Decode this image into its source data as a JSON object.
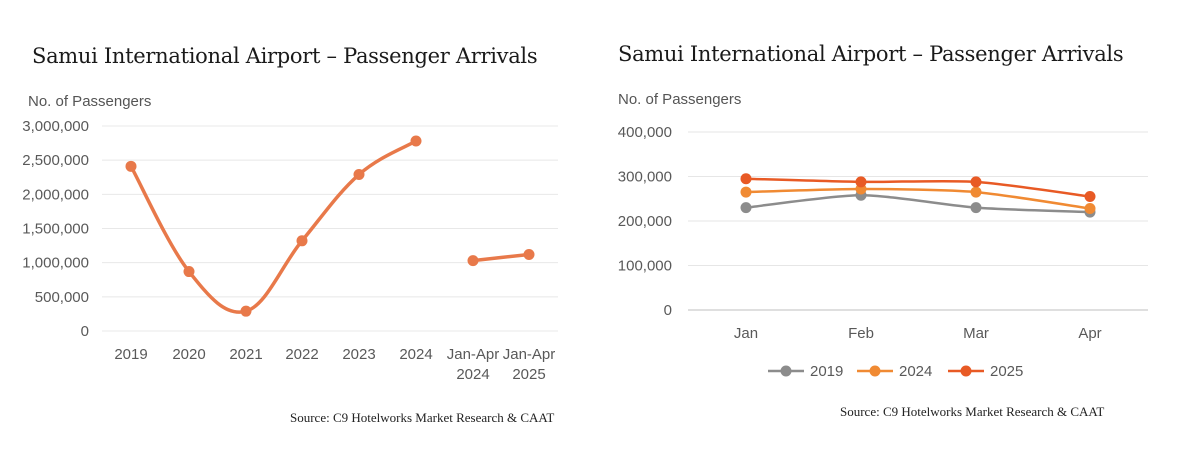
{
  "chart_data": [
    {
      "type": "line",
      "title": "Samui International Airport – Passenger Arrivals",
      "ylabel": "No. of Passengers",
      "xlabel": "",
      "source": "Source: C9 Hotelworks Market Research & CAAT",
      "ylim": [
        0,
        3000000
      ],
      "yticks": [
        "3,000,000",
        "2,500,000",
        "2,000,000",
        "1,500,000",
        "1,000,000",
        "500,000",
        "0"
      ],
      "categories": [
        "2019",
        "2020",
        "2021",
        "2022",
        "2023",
        "2024",
        "Jan-Apr 2024",
        "Jan-Apr 2025"
      ],
      "series": [
        {
          "color": "#E8794A",
          "segments": [
            {
              "x": [
                "2019",
                "2020",
                "2021",
                "2022",
                "2023",
                "2024"
              ],
              "values": [
                2410000,
                870000,
                290000,
                1320000,
                2290000,
                2780000
              ]
            },
            {
              "x": [
                "Jan-Apr 2024",
                "Jan-Apr 2025"
              ],
              "values": [
                1030000,
                1120000
              ]
            }
          ]
        }
      ],
      "grid": true,
      "legend": "none"
    },
    {
      "type": "line",
      "title": "Samui International Airport – Passenger Arrivals",
      "ylabel": "No. of Passengers",
      "xlabel": "",
      "source": "Source: C9 Hotelworks Market Research & CAAT",
      "ylim": [
        0,
        400000
      ],
      "yticks": [
        "400,000",
        "300,000",
        "200,000",
        "100,000",
        "0"
      ],
      "categories": [
        "Jan",
        "Feb",
        "Mar",
        "Apr"
      ],
      "series": [
        {
          "name": "2019",
          "color": "#8C8C8C",
          "values": [
            230000,
            258000,
            230000,
            220000
          ]
        },
        {
          "name": "2024",
          "color": "#F08A33",
          "values": [
            265000,
            272000,
            265000,
            228000
          ]
        },
        {
          "name": "2025",
          "color": "#E85A25",
          "values": [
            295000,
            288000,
            288000,
            255000
          ]
        }
      ],
      "grid": true,
      "legend": "bottom"
    }
  ]
}
